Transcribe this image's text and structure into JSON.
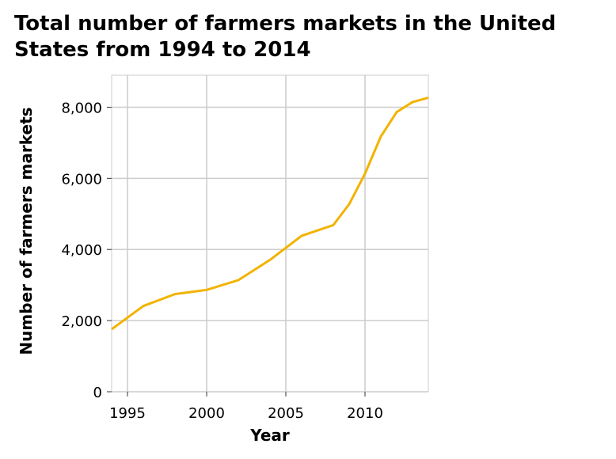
{
  "chart_data": {
    "type": "line",
    "title": "Total number of farmers markets in the United States from 1994 to 2014",
    "xlabel": "Year",
    "ylabel": "Number of farmers markets",
    "xlim": [
      1994,
      2014
    ],
    "ylim": [
      0,
      8900
    ],
    "x_ticks": [
      1995,
      2000,
      2005,
      2010
    ],
    "y_ticks": [
      0,
      2000,
      4000,
      6000,
      8000
    ],
    "y_tick_labels": [
      "0",
      "2,000",
      "4,000",
      "6,000",
      "8,000"
    ],
    "grid": true,
    "line_color": "#f2b300",
    "series": [
      {
        "x": [
          1994,
          1996,
          1998,
          2000,
          2002,
          2004,
          2006,
          2008,
          2009,
          2010,
          2011,
          2012,
          2013,
          2014
        ],
        "values": [
          1755,
          2410,
          2746,
          2863,
          3137,
          3706,
          4385,
          4685,
          5274,
          6132,
          7175,
          7864,
          8144,
          8268
        ]
      }
    ]
  }
}
